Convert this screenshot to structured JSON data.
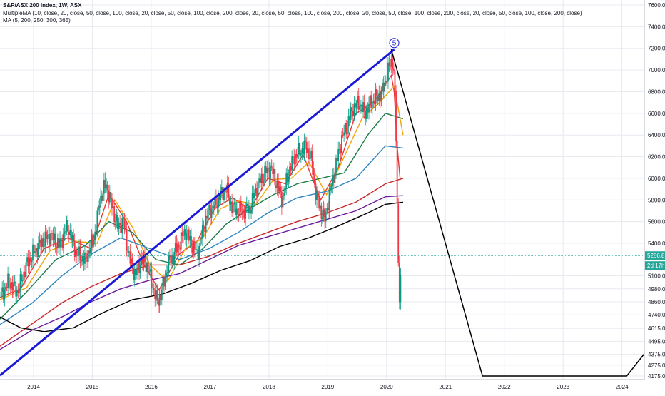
{
  "chart_data": {
    "type": "candlestick",
    "title": "S&P/ASX 200 Index, 1W, ASX",
    "indicators": [
      "MultipleMA (10, close, 20, close, 50, close, 100, close, 20, close, 50, close, 100, close, 200, close, 20, close, 50, close, 100, close, 200, close, 20, close, 50, close, 100, close, 200, close, 20, close, 50, close, 100, close, 200, close)",
      "MA (5, 200, 250, 300, 365)"
    ],
    "x_ticks": [
      "2014",
      "2015",
      "2016",
      "2017",
      "2018",
      "2019",
      "2020",
      "2021",
      "2022",
      "2023",
      "2024"
    ],
    "y_ticks": [
      "7600.0",
      "7400.0",
      "7200.0",
      "7000.0",
      "6800.0",
      "6600.0",
      "6400.0",
      "6200.0",
      "6000.0",
      "5800.0",
      "5600.0",
      "5400.0",
      "5100.0",
      "4980.0",
      "4860.0",
      "4740.0",
      "4615.0",
      "4495.0",
      "4375.0",
      "4275.0",
      "4175.0"
    ],
    "y_range": [
      4175,
      7600
    ],
    "x_range": [
      2013.45,
      2024.4
    ],
    "current_price": {
      "value": 5286.8,
      "label": "5286.8"
    },
    "countdown": {
      "label": "2d 17h"
    },
    "wave_label": "5",
    "price_path": [
      [
        2013.45,
        4900
      ],
      [
        2013.6,
        5050
      ],
      [
        2013.75,
        4950
      ],
      [
        2013.9,
        5200
      ],
      [
        2014.0,
        5300
      ],
      [
        2014.15,
        5400
      ],
      [
        2014.3,
        5480
      ],
      [
        2014.45,
        5380
      ],
      [
        2014.6,
        5560
      ],
      [
        2014.75,
        5300
      ],
      [
        2014.9,
        5250
      ],
      [
        2015.05,
        5450
      ],
      [
        2015.15,
        5800
      ],
      [
        2015.25,
        5950
      ],
      [
        2015.35,
        5750
      ],
      [
        2015.45,
        5550
      ],
      [
        2015.55,
        5600
      ],
      [
        2015.65,
        5250
      ],
      [
        2015.75,
        5100
      ],
      [
        2015.85,
        5250
      ],
      [
        2015.95,
        5200
      ],
      [
        2016.05,
        5000
      ],
      [
        2016.12,
        4850
      ],
      [
        2016.2,
        4950
      ],
      [
        2016.3,
        5200
      ],
      [
        2016.4,
        5300
      ],
      [
        2016.5,
        5400
      ],
      [
        2016.6,
        5520
      ],
      [
        2016.7,
        5400
      ],
      [
        2016.8,
        5300
      ],
      [
        2016.9,
        5520
      ],
      [
        2017.0,
        5700
      ],
      [
        2017.1,
        5750
      ],
      [
        2017.2,
        5850
      ],
      [
        2017.3,
        5900
      ],
      [
        2017.4,
        5720
      ],
      [
        2017.5,
        5700
      ],
      [
        2017.6,
        5700
      ],
      [
        2017.7,
        5720
      ],
      [
        2017.8,
        5900
      ],
      [
        2017.95,
        6050
      ],
      [
        2018.05,
        6100
      ],
      [
        2018.15,
        5950
      ],
      [
        2018.25,
        5800
      ],
      [
        2018.35,
        6050
      ],
      [
        2018.45,
        6200
      ],
      [
        2018.55,
        6250
      ],
      [
        2018.65,
        6300
      ],
      [
        2018.75,
        6150
      ],
      [
        2018.82,
        5850
      ],
      [
        2018.9,
        5700
      ],
      [
        2018.97,
        5620
      ],
      [
        2019.05,
        5850
      ],
      [
        2019.15,
        6100
      ],
      [
        2019.25,
        6350
      ],
      [
        2019.35,
        6500
      ],
      [
        2019.45,
        6650
      ],
      [
        2019.55,
        6700
      ],
      [
        2019.65,
        6600
      ],
      [
        2019.75,
        6700
      ],
      [
        2019.85,
        6750
      ],
      [
        2019.95,
        6800
      ],
      [
        2020.05,
        7000
      ],
      [
        2020.12,
        7100
      ],
      [
        2020.15,
        6950
      ],
      [
        2020.18,
        6400
      ],
      [
        2020.21,
        5400
      ],
      [
        2020.24,
        4900
      ],
      [
        2020.27,
        5150
      ]
    ],
    "moving_averages": [
      {
        "color": "#e53935",
        "points": [
          [
            2013.45,
            4900
          ],
          [
            2013.8,
            4980
          ],
          [
            2014.2,
            5350
          ],
          [
            2014.6,
            5450
          ],
          [
            2015.0,
            5350
          ],
          [
            2015.3,
            5850
          ],
          [
            2015.6,
            5600
          ],
          [
            2015.9,
            5200
          ],
          [
            2016.15,
            4970
          ],
          [
            2016.5,
            5300
          ],
          [
            2016.8,
            5420
          ],
          [
            2017.1,
            5720
          ],
          [
            2017.4,
            5820
          ],
          [
            2017.7,
            5710
          ],
          [
            2018.0,
            6000
          ],
          [
            2018.3,
            5950
          ],
          [
            2018.6,
            6220
          ],
          [
            2018.9,
            5800
          ],
          [
            2019.2,
            6100
          ],
          [
            2019.5,
            6600
          ],
          [
            2019.8,
            6700
          ],
          [
            2020.1,
            6950
          ],
          [
            2020.15,
            6800
          ],
          [
            2020.2,
            6300
          ],
          [
            2020.25,
            5990
          ]
        ]
      },
      {
        "color": "#f0a30a",
        "points": [
          [
            2013.45,
            4880
          ],
          [
            2013.9,
            4990
          ],
          [
            2014.3,
            5330
          ],
          [
            2014.7,
            5420
          ],
          [
            2015.1,
            5400
          ],
          [
            2015.4,
            5800
          ],
          [
            2015.7,
            5550
          ],
          [
            2016.0,
            5200
          ],
          [
            2016.3,
            5050
          ],
          [
            2016.6,
            5350
          ],
          [
            2016.9,
            5450
          ],
          [
            2017.2,
            5720
          ],
          [
            2017.5,
            5790
          ],
          [
            2017.8,
            5760
          ],
          [
            2018.1,
            5990
          ],
          [
            2018.4,
            6000
          ],
          [
            2018.7,
            6150
          ],
          [
            2019.0,
            5850
          ],
          [
            2019.3,
            6200
          ],
          [
            2019.6,
            6550
          ],
          [
            2019.9,
            6700
          ],
          [
            2020.15,
            6850
          ],
          [
            2020.3,
            6400
          ]
        ]
      },
      {
        "color": "#1b7a4a",
        "points": [
          [
            2013.45,
            4700
          ],
          [
            2013.9,
            4950
          ],
          [
            2014.4,
            5250
          ],
          [
            2014.9,
            5380
          ],
          [
            2015.3,
            5600
          ],
          [
            2015.7,
            5500
          ],
          [
            2016.1,
            5250
          ],
          [
            2016.5,
            5200
          ],
          [
            2016.9,
            5350
          ],
          [
            2017.3,
            5580
          ],
          [
            2017.7,
            5720
          ],
          [
            2018.1,
            5850
          ],
          [
            2018.5,
            5950
          ],
          [
            2018.9,
            6000
          ],
          [
            2019.3,
            6050
          ],
          [
            2019.7,
            6400
          ],
          [
            2020.0,
            6600
          ],
          [
            2020.3,
            6550
          ]
        ]
      },
      {
        "color": "#2e86c1",
        "points": [
          [
            2013.45,
            4650
          ],
          [
            2014.0,
            4850
          ],
          [
            2014.5,
            5100
          ],
          [
            2015.0,
            5300
          ],
          [
            2015.5,
            5450
          ],
          [
            2016.0,
            5350
          ],
          [
            2016.5,
            5250
          ],
          [
            2017.0,
            5350
          ],
          [
            2017.5,
            5500
          ],
          [
            2018.0,
            5680
          ],
          [
            2018.5,
            5820
          ],
          [
            2019.0,
            5880
          ],
          [
            2019.5,
            6000
          ],
          [
            2020.0,
            6300
          ],
          [
            2020.3,
            6280
          ]
        ]
      },
      {
        "color": "#c62828",
        "points": [
          [
            2013.45,
            4450
          ],
          [
            2014.0,
            4660
          ],
          [
            2014.5,
            4850
          ],
          [
            2015.0,
            5000
          ],
          [
            2015.5,
            5120
          ],
          [
            2016.0,
            5200
          ],
          [
            2016.5,
            5200
          ],
          [
            2017.0,
            5280
          ],
          [
            2017.5,
            5400
          ],
          [
            2018.0,
            5500
          ],
          [
            2018.5,
            5600
          ],
          [
            2019.0,
            5680
          ],
          [
            2019.5,
            5780
          ],
          [
            2020.0,
            5950
          ],
          [
            2020.3,
            6000
          ]
        ]
      },
      {
        "color": "#6a1b9a",
        "points": [
          [
            2013.45,
            4420
          ],
          [
            2014.0,
            4600
          ],
          [
            2014.5,
            4720
          ],
          [
            2015.0,
            4860
          ],
          [
            2015.5,
            4980
          ],
          [
            2016.0,
            5060
          ],
          [
            2016.5,
            5120
          ],
          [
            2017.0,
            5250
          ],
          [
            2017.5,
            5380
          ],
          [
            2018.0,
            5460
          ],
          [
            2018.5,
            5540
          ],
          [
            2019.0,
            5620
          ],
          [
            2019.5,
            5700
          ],
          [
            2020.0,
            5830
          ],
          [
            2020.3,
            5840
          ]
        ]
      },
      {
        "color": "#000000",
        "points": [
          [
            2013.45,
            4720
          ],
          [
            2013.8,
            4620
          ],
          [
            2014.2,
            4585
          ],
          [
            2014.7,
            4620
          ],
          [
            2015.2,
            4760
          ],
          [
            2015.7,
            4880
          ],
          [
            2016.2,
            4930
          ],
          [
            2016.7,
            5030
          ],
          [
            2017.2,
            5150
          ],
          [
            2017.7,
            5240
          ],
          [
            2018.2,
            5370
          ],
          [
            2018.7,
            5450
          ],
          [
            2019.2,
            5560
          ],
          [
            2019.7,
            5680
          ],
          [
            2020.0,
            5760
          ],
          [
            2020.3,
            5780
          ]
        ]
      }
    ],
    "trendline": {
      "color": "#1a1ad6",
      "points": [
        [
          2013.45,
          4180
        ],
        [
          2020.15,
          7190
        ]
      ]
    },
    "projection": {
      "color": "#000000",
      "points": [
        [
          2020.1,
          7190
        ],
        [
          2021.65,
          4175
        ],
        [
          2024.1,
          4175
        ],
        [
          2024.4,
          4380
        ]
      ]
    },
    "colors": {
      "up": "#089981",
      "down": "#f23645",
      "price_line": "#26a69a",
      "price_tag": "#26a69a",
      "grid": "#e8eaf0"
    }
  }
}
